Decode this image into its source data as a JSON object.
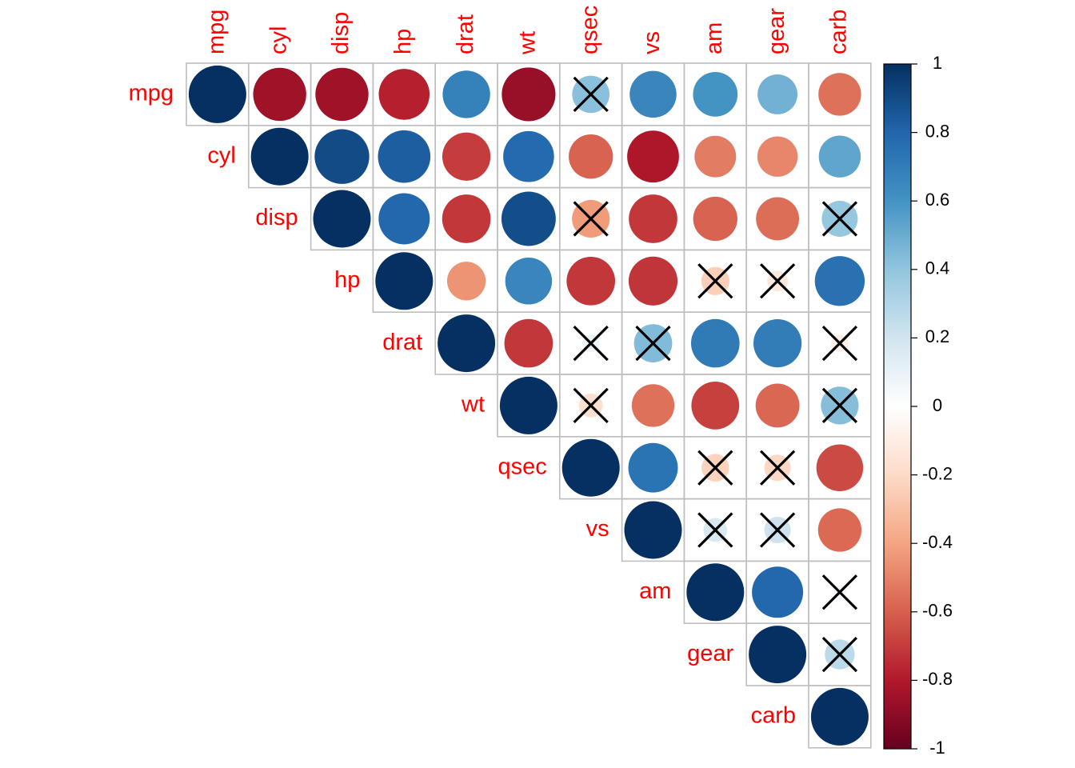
{
  "chart_data": {
    "type": "heatmap",
    "variables": [
      "mpg",
      "cyl",
      "disp",
      "hp",
      "drat",
      "wt",
      "qsec",
      "vs",
      "am",
      "gear",
      "carb"
    ],
    "matrix": [
      [
        1.0,
        -0.85,
        -0.85,
        -0.78,
        0.68,
        -0.87,
        0.42,
        0.66,
        0.6,
        0.48,
        -0.55
      ],
      [
        -0.85,
        1.0,
        0.9,
        0.83,
        -0.7,
        0.78,
        -0.59,
        -0.81,
        -0.52,
        -0.49,
        0.53
      ],
      [
        -0.85,
        0.9,
        1.0,
        0.79,
        -0.71,
        0.89,
        -0.43,
        -0.71,
        -0.59,
        -0.56,
        0.39
      ],
      [
        -0.78,
        0.83,
        0.79,
        1.0,
        -0.45,
        0.66,
        -0.71,
        -0.72,
        -0.24,
        -0.13,
        0.75
      ],
      [
        0.68,
        -0.7,
        -0.71,
        -0.45,
        1.0,
        -0.71,
        0.09,
        0.44,
        0.71,
        0.7,
        -0.09
      ],
      [
        -0.87,
        0.78,
        0.89,
        0.66,
        -0.71,
        1.0,
        -0.17,
        -0.55,
        -0.69,
        -0.58,
        0.43
      ],
      [
        0.42,
        -0.59,
        -0.43,
        -0.71,
        0.09,
        -0.17,
        1.0,
        0.74,
        -0.23,
        -0.21,
        -0.66
      ],
      [
        0.66,
        -0.81,
        -0.71,
        -0.72,
        0.44,
        -0.55,
        0.74,
        1.0,
        0.17,
        0.21,
        -0.57
      ],
      [
        0.6,
        -0.52,
        -0.59,
        -0.24,
        0.71,
        -0.69,
        -0.23,
        0.17,
        1.0,
        0.79,
        0.06
      ],
      [
        0.48,
        -0.49,
        -0.56,
        -0.13,
        0.7,
        -0.58,
        -0.21,
        0.21,
        0.79,
        1.0,
        0.27
      ],
      [
        -0.55,
        0.53,
        0.39,
        0.75,
        -0.09,
        0.43,
        -0.66,
        -0.57,
        0.06,
        0.27,
        1.0
      ]
    ],
    "insignificant": [
      [
        "mpg",
        "qsec"
      ],
      [
        "disp",
        "qsec"
      ],
      [
        "disp",
        "carb"
      ],
      [
        "hp",
        "am"
      ],
      [
        "hp",
        "gear"
      ],
      [
        "drat",
        "qsec"
      ],
      [
        "drat",
        "vs"
      ],
      [
        "drat",
        "carb"
      ],
      [
        "wt",
        "qsec"
      ],
      [
        "wt",
        "carb"
      ],
      [
        "qsec",
        "am"
      ],
      [
        "qsec",
        "gear"
      ],
      [
        "vs",
        "am"
      ],
      [
        "vs",
        "gear"
      ],
      [
        "am",
        "carb"
      ],
      [
        "gear",
        "carb"
      ]
    ],
    "triangle": "upper",
    "method": "circle",
    "insignificant_marker": "cross",
    "label_color": "#ff0000",
    "colorbar": {
      "ticks": [
        "1",
        "0.8",
        "0.6",
        "0.4",
        "0.2",
        "0",
        "-0.2",
        "-0.4",
        "-0.6",
        "-0.8",
        "-1"
      ],
      "range": [
        -1,
        1
      ],
      "colors": [
        "#67001F",
        "#B2182B",
        "#D6604D",
        "#F4A582",
        "#FDDBC7",
        "#FFFFFF",
        "#D1E5F0",
        "#92C5DE",
        "#4393C3",
        "#2166AC",
        "#053061"
      ]
    }
  }
}
